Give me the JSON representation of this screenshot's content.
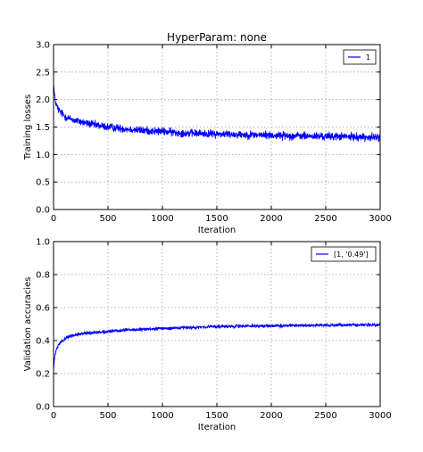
{
  "chart_data": [
    {
      "type": "line",
      "title": "HyperParam: none",
      "xlabel": "Iteration",
      "ylabel": "Training losses",
      "xlim": [
        0,
        3000
      ],
      "ylim": [
        0.0,
        3.0
      ],
      "xticks": [
        "0",
        "500",
        "1000",
        "1500",
        "2000",
        "2500",
        "3000"
      ],
      "yticks": [
        "0.0",
        "0.5",
        "1.0",
        "1.5",
        "2.0",
        "2.5",
        "3.0"
      ],
      "grid": true,
      "legend_position": "top-right",
      "series": [
        {
          "name": "1",
          "color": "#0000ff",
          "x": [
            0,
            10,
            25,
            50,
            100,
            150,
            200,
            300,
            400,
            500,
            600,
            700,
            800,
            900,
            1000,
            1200,
            1400,
            1600,
            1800,
            2000,
            2200,
            2400,
            2600,
            2800,
            3000
          ],
          "y": [
            2.3,
            2.05,
            1.9,
            1.8,
            1.7,
            1.65,
            1.62,
            1.57,
            1.53,
            1.5,
            1.48,
            1.46,
            1.44,
            1.43,
            1.42,
            1.39,
            1.38,
            1.37,
            1.36,
            1.35,
            1.34,
            1.33,
            1.33,
            1.32,
            1.31
          ],
          "noise": 0.045
        }
      ]
    },
    {
      "type": "line",
      "title": "",
      "xlabel": "Iteration",
      "ylabel": "Validation accuracies",
      "xlim": [
        0,
        3000
      ],
      "ylim": [
        0.0,
        1.0
      ],
      "xticks": [
        "0",
        "500",
        "1000",
        "1500",
        "2000",
        "2500",
        "3000"
      ],
      "yticks": [
        "0.0",
        "0.2",
        "0.4",
        "0.6",
        "0.8",
        "1.0"
      ],
      "grid": true,
      "legend_position": "top-right",
      "series": [
        {
          "name": "[1, '0.49']",
          "color": "#0000ff",
          "x": [
            0,
            10,
            25,
            50,
            100,
            150,
            200,
            300,
            400,
            500,
            700,
            900,
            1100,
            1300,
            1500,
            1700,
            1900,
            2100,
            2300,
            2500,
            2700,
            2900,
            3000
          ],
          "y": [
            0.22,
            0.3,
            0.34,
            0.38,
            0.41,
            0.425,
            0.435,
            0.445,
            0.45,
            0.455,
            0.465,
            0.47,
            0.475,
            0.48,
            0.485,
            0.487,
            0.489,
            0.49,
            0.492,
            0.494,
            0.495,
            0.495,
            0.495
          ],
          "noise": 0.006
        }
      ]
    }
  ]
}
